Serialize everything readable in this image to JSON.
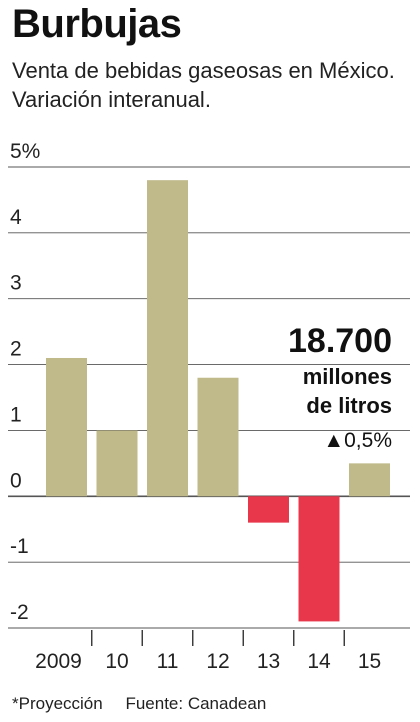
{
  "title": "Burbujas",
  "subtitle": "Venta de bebidas gaseosas en México. Variación interanual.",
  "annotation": {
    "value": "18.700",
    "unit_line1": "millones",
    "unit_line2": "de litros",
    "change": "▲0,5%"
  },
  "footnote": {
    "note": "*Proyección",
    "source": "Fuente: Canadean"
  },
  "colors": {
    "positive": "#c0b98a",
    "negative": "#e8374a",
    "grid": "#555555"
  },
  "chart_data": {
    "type": "bar",
    "categories": [
      "2009",
      "10",
      "11",
      "12",
      "13",
      "14",
      "15"
    ],
    "values": [
      2.1,
      1.0,
      4.8,
      1.8,
      -0.4,
      -1.9,
      0.5
    ],
    "y_ticks": [
      "5%",
      "4",
      "3",
      "2",
      "1",
      "0",
      "-1",
      "-2"
    ],
    "ylim": [
      -2,
      5
    ],
    "grid": true
  }
}
